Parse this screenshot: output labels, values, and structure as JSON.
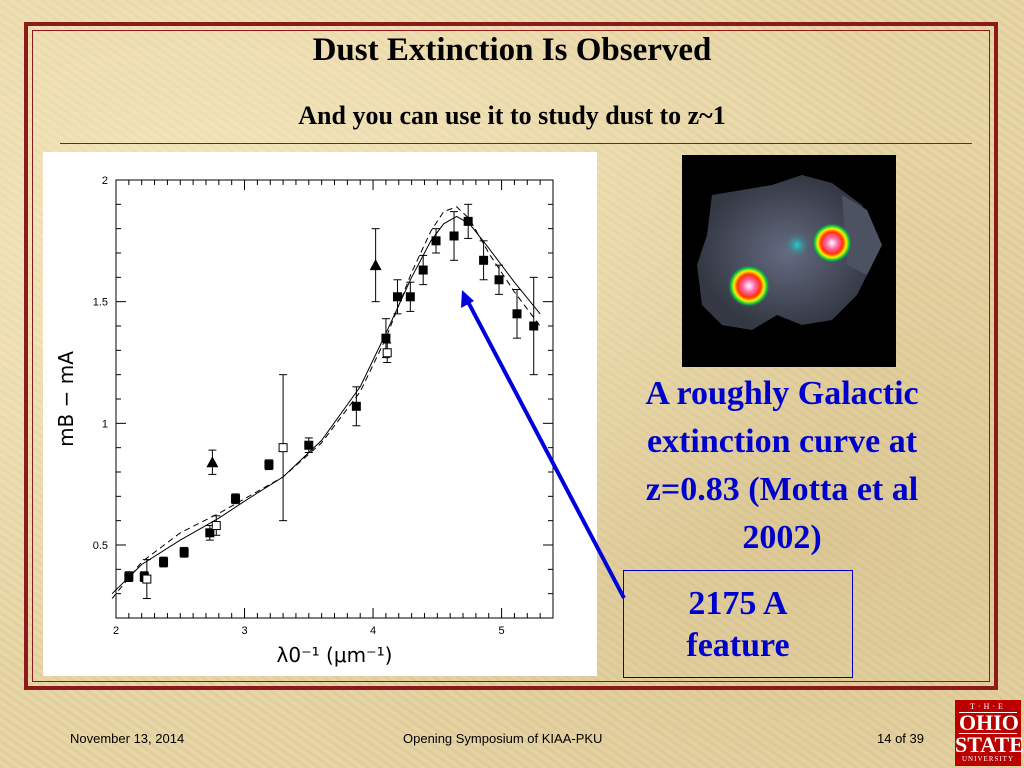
{
  "slide": {
    "title": "Dust Extinction Is Observed",
    "subtitle": "And you can use it to study dust to z~1",
    "caption_lines": [
      "A roughly Galactic",
      "extinction curve at",
      "z=0.83 (Motta et al",
      "2002)"
    ],
    "feature_box_lines": [
      "2175 A",
      "feature"
    ],
    "footer_date": "November 13, 2014",
    "footer_event": "Opening Symposium of KIAA-PKU",
    "footer_page": "14 of 39",
    "logo": {
      "the": "T·H·E",
      "ohio": "OHIO",
      "state": "STATE",
      "university": "UNIVERSITY"
    }
  },
  "colors": {
    "frame": "#8b1a1a",
    "caption": "#0000cc",
    "arrow": "#0000dd",
    "logo_bg": "#bb0000"
  },
  "chart_data": {
    "type": "scatter",
    "xlabel": "λ0⁻¹ (μm⁻¹)",
    "ylabel": "mB − mA",
    "xlim": [
      2.0,
      5.4
    ],
    "ylim": [
      0.2,
      2.0
    ],
    "x_ticks": [
      2,
      3,
      4,
      5
    ],
    "y_ticks": [
      0.5,
      1,
      1.5,
      2
    ],
    "series": [
      {
        "marker": "filled-square",
        "x": [
          2.1,
          2.22,
          2.37,
          2.53,
          2.73,
          2.93,
          3.19,
          3.5,
          3.87,
          4.1,
          4.19,
          4.29,
          4.39,
          4.49,
          4.63,
          4.74,
          4.86,
          4.98,
          5.12,
          5.25
        ],
        "y": [
          0.37,
          0.37,
          0.43,
          0.47,
          0.55,
          0.69,
          0.83,
          0.91,
          1.07,
          1.35,
          1.52,
          1.52,
          1.63,
          1.75,
          1.77,
          1.83,
          1.67,
          1.59,
          1.45,
          1.4
        ],
        "yerr": [
          0.02,
          0.02,
          0.02,
          0.02,
          0.03,
          0.02,
          0.02,
          0.03,
          0.08,
          0.08,
          0.07,
          0.06,
          0.06,
          0.05,
          0.1,
          0.07,
          0.08,
          0.06,
          0.1,
          0.2
        ]
      },
      {
        "marker": "open-square",
        "x": [
          2.24,
          2.78,
          3.3,
          4.11
        ],
        "y": [
          0.36,
          0.58,
          0.9,
          1.29
        ],
        "yerr": [
          0.08,
          0.04,
          0.3,
          0.04
        ]
      },
      {
        "marker": "filled-triangle",
        "x": [
          2.75,
          4.02
        ],
        "y": [
          0.84,
          1.65
        ],
        "yerr": [
          0.05,
          0.15
        ]
      }
    ],
    "curves": [
      {
        "style": "solid",
        "x": [
          1.97,
          2.2,
          2.5,
          2.8,
          3.0,
          3.3,
          3.6,
          3.9,
          4.1,
          4.3,
          4.45,
          4.55,
          4.65,
          4.75,
          4.9,
          5.1,
          5.3
        ],
        "y": [
          0.3,
          0.42,
          0.52,
          0.61,
          0.68,
          0.78,
          0.93,
          1.15,
          1.37,
          1.6,
          1.75,
          1.82,
          1.85,
          1.82,
          1.72,
          1.58,
          1.45
        ]
      },
      {
        "style": "dashed",
        "x": [
          1.97,
          2.2,
          2.5,
          2.8,
          3.0,
          3.3,
          3.6,
          3.9,
          4.1,
          4.3,
          4.45,
          4.55,
          4.65,
          4.75,
          4.9,
          5.1,
          5.3
        ],
        "y": [
          0.28,
          0.43,
          0.55,
          0.63,
          0.69,
          0.78,
          0.92,
          1.13,
          1.35,
          1.62,
          1.79,
          1.87,
          1.89,
          1.84,
          1.7,
          1.54,
          1.4
        ]
      }
    ]
  }
}
